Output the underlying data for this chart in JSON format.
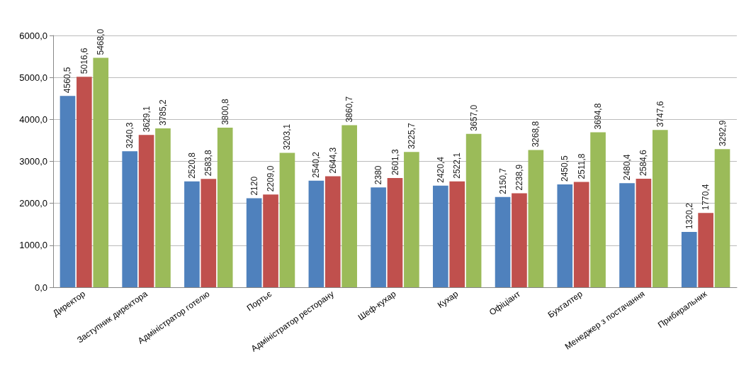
{
  "chart_data": {
    "type": "bar",
    "categories": [
      "Директор",
      "Заступник директора",
      "Адміністратор готелю",
      "Портьє",
      "Адміністратор ресторану",
      "Шеф-кухар",
      "Кухар",
      "Офіціант",
      "Бухгалтер",
      "Менеджер з постачання",
      "Прибиральник"
    ],
    "series": [
      {
        "color": "#4f81bd",
        "values": [
          4560.5,
          3240.3,
          2520.8,
          2120,
          2540.2,
          2380,
          2420.4,
          2150.7,
          2450.5,
          2480.4,
          1320.2
        ],
        "value_labels": [
          "4560,5",
          "3240,3",
          "2520,8",
          "2120",
          "2540,2",
          "2380",
          "2420,4",
          "2150,7",
          "2450,5",
          "2480,4",
          "1320,2"
        ]
      },
      {
        "color": "#c0504d",
        "values": [
          5016.6,
          3629.1,
          2583.8,
          2209.0,
          2644.3,
          2601.3,
          2522.1,
          2238.9,
          2511.8,
          2584.6,
          1770.4
        ],
        "value_labels": [
          "5016,6",
          "3629,1",
          "2583,8",
          "2209,0",
          "2644,3",
          "2601,3",
          "2522,1",
          "2238,9",
          "2511,8",
          "2584,6",
          "1770,4"
        ]
      },
      {
        "color": "#9bbb59",
        "values": [
          5468.0,
          3785.2,
          3800.8,
          3203.1,
          3860.7,
          3225.7,
          3657.0,
          3268.8,
          3694.8,
          3747.6,
          3292.9
        ],
        "value_labels": [
          "5468,0",
          "3785,2",
          "3800,8",
          "3203,1",
          "3860,7",
          "3225,7",
          "3657,0",
          "3268,8",
          "3694,8",
          "3747,6",
          "3292,9"
        ]
      }
    ],
    "ylim": [
      0,
      6000
    ],
    "yticks": [
      {
        "value": 0,
        "label": "0,0"
      },
      {
        "value": 1000,
        "label": "1000,0"
      },
      {
        "value": 2000,
        "label": "2000,0"
      },
      {
        "value": 3000,
        "label": "3000,0"
      },
      {
        "value": 4000,
        "label": "4000,0"
      },
      {
        "value": 5000,
        "label": "5000,0"
      },
      {
        "value": 6000,
        "label": "6000,0"
      }
    ],
    "grid": "y"
  }
}
